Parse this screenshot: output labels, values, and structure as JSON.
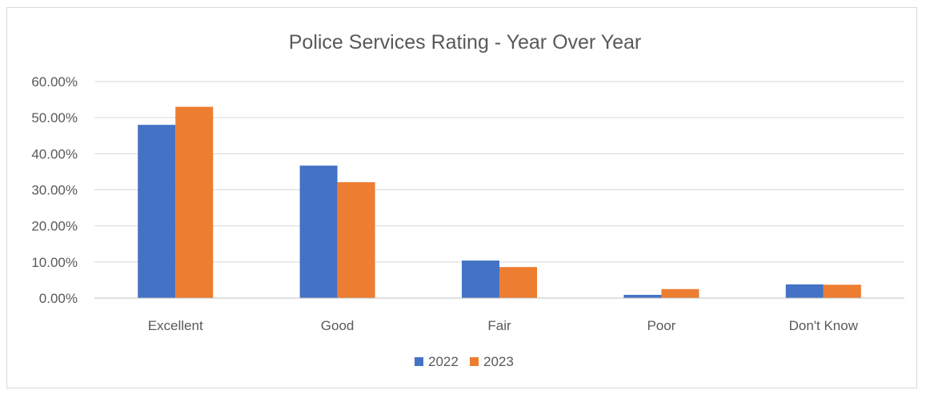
{
  "chart_data": {
    "type": "bar",
    "title": "Police Services Rating - Year Over Year",
    "categories": [
      "Excellent",
      "Good",
      "Fair",
      "Poor",
      "Don't Know"
    ],
    "series": [
      {
        "name": "2022",
        "color": "#4472C4",
        "values": [
          48.0,
          36.7,
          10.4,
          0.9,
          3.8
        ]
      },
      {
        "name": "2023",
        "color": "#ED7D31",
        "values": [
          53.0,
          32.1,
          8.6,
          2.5,
          3.7
        ]
      }
    ],
    "ylim": [
      0,
      60
    ],
    "yticks": [
      0,
      10,
      20,
      30,
      40,
      50,
      60
    ],
    "ytick_labels": [
      "0.00%",
      "10.00%",
      "20.00%",
      "30.00%",
      "40.00%",
      "50.00%",
      "60.00%"
    ],
    "xlabel": "",
    "ylabel": "",
    "grid": true,
    "legend_position": "bottom"
  }
}
